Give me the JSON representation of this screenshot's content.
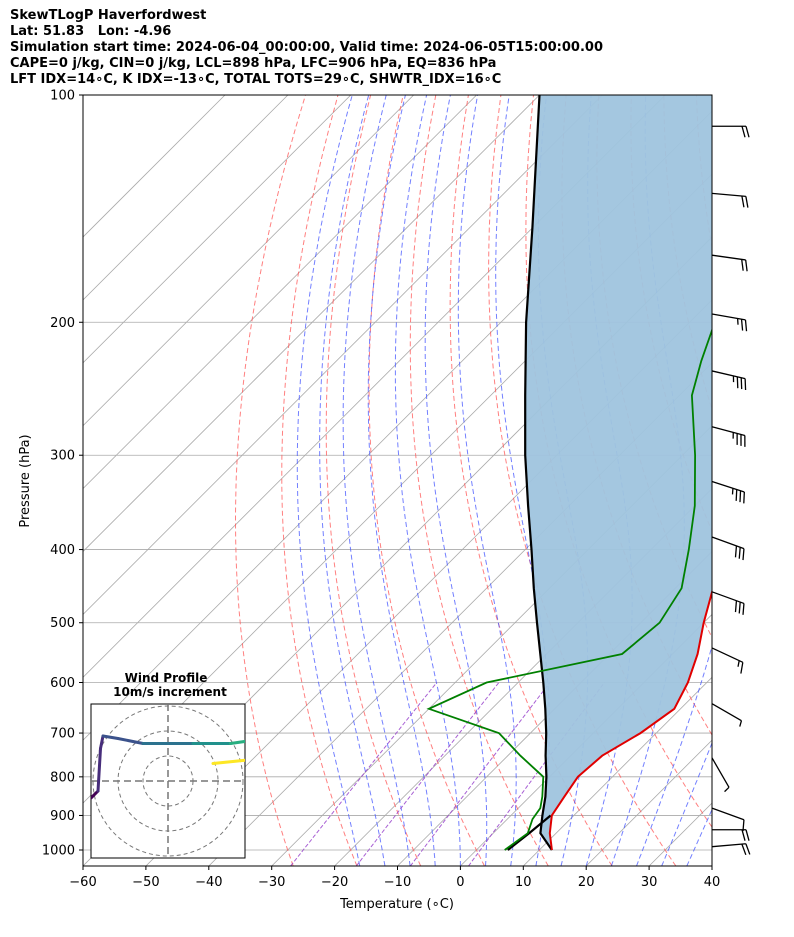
{
  "header": {
    "line1": "SkewTLogP Haverfordwest",
    "line2": "Lat: 51.83   Lon: -4.96",
    "line3": "Simulation start time: 2024-06-04_00:00:00, Valid time: 2024-06-05T15:00:00.00",
    "line4": "CAPE=0 j/kg, CIN=0 j/kg, LCL=898 hPa, LFC=906 hPa, EQ=836 hPa",
    "line5": "LFT IDX=14∘C, K IDX=-13∘C, TOTAL TOTS=29∘C, SHWTR_IDX=16∘C"
  },
  "chart_data": {
    "type": "line",
    "subtype": "skew-t log-p",
    "xlabel": "Temperature (∘C)",
    "ylabel": "Pressure (hPa)",
    "xlim": [
      -60,
      40
    ],
    "ylim": [
      1050,
      100
    ],
    "y_scale": "log",
    "skew_degrees": 45,
    "grid": true,
    "x_ticks": [
      "−60",
      "−50",
      "−40",
      "−30",
      "−20",
      "−10",
      "0",
      "10",
      "20",
      "30",
      "40"
    ],
    "y_ticks": [
      "100",
      "200",
      "300",
      "400",
      "500",
      "600",
      "700",
      "800",
      "900",
      "1000"
    ],
    "y_tick_values": [
      100,
      200,
      300,
      400,
      500,
      600,
      700,
      800,
      900,
      1000
    ],
    "colors": {
      "temperature": "#e00000",
      "dewpoint": "#008000",
      "parcel": "#000000",
      "cape_shade": "#9fc4de",
      "dry_adiabat": "#ff5555",
      "moist_adiabat": "#4455ff",
      "mixing_ratio": "#9944cc",
      "isotherm": "#aaaaaa"
    },
    "series": [
      {
        "name": "temperature",
        "points": [
          [
            1000,
            12
          ],
          [
            950,
            9
          ],
          [
            900,
            6.5
          ],
          [
            850,
            5.5
          ],
          [
            800,
            4.5
          ],
          [
            750,
            5
          ],
          [
            700,
            7.5
          ],
          [
            650,
            9
          ],
          [
            600,
            7
          ],
          [
            550,
            4
          ],
          [
            500,
            0
          ],
          [
            450,
            -4
          ],
          [
            400,
            -8
          ],
          [
            350,
            -14
          ],
          [
            300,
            -20
          ],
          [
            275,
            -22
          ],
          [
            250,
            -23.5
          ],
          [
            225,
            -25
          ],
          [
            200,
            -27
          ],
          [
            175,
            -30
          ],
          [
            150,
            -33
          ],
          [
            125,
            -38
          ],
          [
            110,
            -42
          ],
          [
            100,
            -45
          ]
        ]
      },
      {
        "name": "dewpoint",
        "points": [
          [
            1000,
            4.5
          ],
          [
            950,
            5.5
          ],
          [
            910,
            4
          ],
          [
            880,
            3.5
          ],
          [
            850,
            2
          ],
          [
            800,
            -1
          ],
          [
            750,
            -8
          ],
          [
            700,
            -15
          ],
          [
            650,
            -30
          ],
          [
            600,
            -25
          ],
          [
            550,
            -8
          ],
          [
            500,
            -7
          ],
          [
            450,
            -9
          ],
          [
            400,
            -14
          ],
          [
            350,
            -20
          ],
          [
            300,
            -28
          ],
          [
            250,
            -38
          ],
          [
            225,
            -42
          ],
          [
            200,
            -46
          ],
          [
            180,
            -50
          ],
          [
            160,
            -55
          ],
          [
            130,
            -52
          ],
          [
            100,
            -48
          ]
        ]
      },
      {
        "name": "parcel",
        "points": [
          [
            1000,
            12
          ],
          [
            950,
            7.5
          ],
          [
            900,
            5
          ],
          [
            850,
            2.5
          ],
          [
            800,
            -0.5
          ],
          [
            750,
            -4
          ],
          [
            700,
            -7.5
          ],
          [
            650,
            -11.5
          ],
          [
            600,
            -16
          ],
          [
            550,
            -21
          ],
          [
            500,
            -26.5
          ],
          [
            450,
            -32.5
          ],
          [
            400,
            -39
          ],
          [
            350,
            -46.5
          ],
          [
            300,
            -55
          ],
          [
            250,
            -64.5
          ],
          [
            200,
            -76
          ],
          [
            150,
            -90
          ],
          [
            100,
            -110
          ]
        ]
      },
      {
        "name": "parcel-surface",
        "points": [
          [
            1000,
            5
          ],
          [
            950,
            5.7
          ],
          [
            900,
            6.3
          ]
        ]
      }
    ],
    "wind_barbs": [
      {
        "p": 110,
        "speed": 20,
        "dir": 270
      },
      {
        "p": 135,
        "speed": 20,
        "dir": 275
      },
      {
        "p": 163,
        "speed": 20,
        "dir": 278
      },
      {
        "p": 195,
        "speed": 25,
        "dir": 280
      },
      {
        "p": 232,
        "speed": 35,
        "dir": 283
      },
      {
        "p": 275,
        "speed": 35,
        "dir": 285
      },
      {
        "p": 325,
        "speed": 35,
        "dir": 288
      },
      {
        "p": 385,
        "speed": 30,
        "dir": 290
      },
      {
        "p": 455,
        "speed": 30,
        "dir": 290
      },
      {
        "p": 540,
        "speed": 15,
        "dir": 295
      },
      {
        "p": 640,
        "speed": 5,
        "dir": 300
      },
      {
        "p": 755,
        "speed": 5,
        "dir": 330
      },
      {
        "p": 880,
        "speed": 10,
        "dir": 290
      },
      {
        "p": 940,
        "speed": 20,
        "dir": 270
      },
      {
        "p": 990,
        "speed": 20,
        "dir": 265
      }
    ],
    "inset": {
      "title_line1": "Wind Profile",
      "title_line2": "10m/s increment",
      "rings": 3,
      "hodograph": [
        [
          -3.5,
          -0.8
        ],
        [
          -3.2,
          0.8
        ],
        [
          -2.8,
          0.4
        ],
        [
          -2.7,
          -1.3
        ],
        [
          -2.6,
          -1.8
        ],
        [
          -2.0,
          -1.7
        ],
        [
          -1.0,
          -1.5
        ],
        [
          0,
          -1.5
        ],
        [
          1,
          -1.5
        ],
        [
          2.5,
          -1.5
        ],
        [
          3.2,
          -1.6
        ],
        [
          3.7,
          -1.8
        ],
        [
          4.5,
          -1.9
        ],
        [
          5.2,
          -1.8
        ],
        [
          5.4,
          -1.4
        ],
        [
          3.8,
          -0.9
        ],
        [
          1.8,
          -0.7
        ]
      ]
    }
  }
}
